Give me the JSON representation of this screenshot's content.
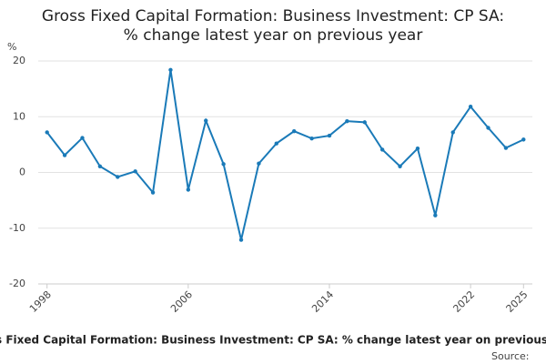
{
  "chart_data": {
    "type": "line",
    "title": [
      "Gross Fixed Capital Formation: Business Investment: CP SA:",
      "% change latest year on previous year"
    ],
    "y_label": "%",
    "caption": "Gross Fixed Capital Formation: Business Investment: CP SA: % change latest year on previous year",
    "source": "Source:",
    "x": [
      1998,
      1999,
      2000,
      2001,
      2002,
      2003,
      2004,
      2005,
      2006,
      2007,
      2008,
      2009,
      2010,
      2011,
      2012,
      2013,
      2014,
      2015,
      2016,
      2017,
      2018,
      2019,
      2020,
      2021,
      2022,
      2023,
      2024,
      2025
    ],
    "series": [
      {
        "name": "% change",
        "color": "#1a7ab8",
        "values": [
          7.2,
          3.1,
          6.2,
          1.1,
          -0.8,
          0.2,
          -3.6,
          18.4,
          -3.1,
          9.3,
          1.5,
          -12.1,
          1.6,
          5.2,
          7.4,
          6.1,
          6.6,
          9.2,
          9.0,
          4.1,
          1.1,
          4.3,
          -7.7,
          7.2,
          11.8,
          8.0,
          4.4,
          5.9
        ]
      }
    ],
    "xlim": [
      1997.5,
      2025.5
    ],
    "xticks": [
      1998,
      2006,
      2014,
      2022,
      2025
    ],
    "ylim": [
      -20,
      20
    ],
    "yticks": [
      -20,
      -10,
      0,
      10,
      20
    ],
    "grid": true
  }
}
